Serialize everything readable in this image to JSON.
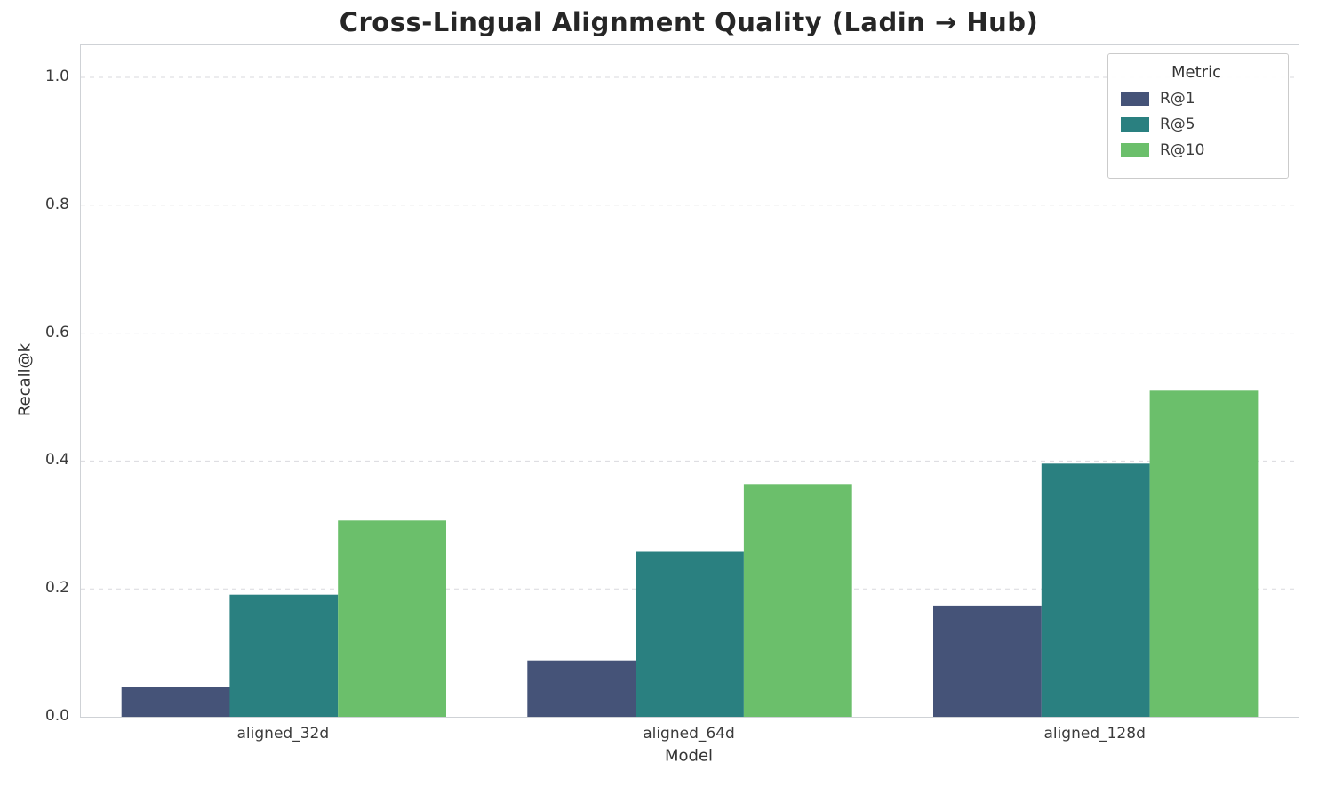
{
  "chart_data": {
    "type": "bar",
    "title": "Cross-Lingual Alignment Quality (Ladin → Hub)",
    "xlabel": "Model",
    "ylabel": "Recall@k",
    "categories": [
      "aligned_32d",
      "aligned_64d",
      "aligned_128d"
    ],
    "series": [
      {
        "name": "R@1",
        "color": "#455378",
        "values": [
          0.046,
          0.088,
          0.174
        ]
      },
      {
        "name": "R@5",
        "color": "#2a8080",
        "values": [
          0.191,
          0.258,
          0.396
        ]
      },
      {
        "name": "R@10",
        "color": "#6bbf6b",
        "values": [
          0.307,
          0.364,
          0.51
        ]
      }
    ],
    "ylim": [
      0,
      1.05
    ],
    "yticks": [
      0.0,
      0.2,
      0.4,
      0.6,
      0.8,
      1.0
    ],
    "legend_title": "Metric",
    "legend_position": "upper right",
    "grid": true,
    "grid_style": "dashed"
  }
}
